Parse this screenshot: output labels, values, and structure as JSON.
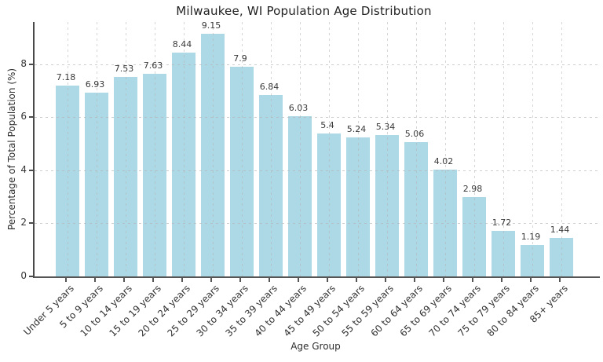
{
  "chart_data": {
    "type": "bar",
    "title": "Milwaukee, WI Population Age Distribution",
    "xlabel": "Age Group",
    "ylabel": "Percentage of Total Population (%)",
    "categories": [
      "Under 5 years",
      "5 to 9 years",
      "10 to 14 years",
      "15 to 19 years",
      "20 to 24 years",
      "25 to 29 years",
      "30 to 34 years",
      "35 to 39 years",
      "40 to 44 years",
      "45 to 49 years",
      "50 to 54 years",
      "55 to 59 years",
      "60 to 64 years",
      "65 to 69 years",
      "70 to 74 years",
      "75 to 79 years",
      "80 to 84 years",
      "85+ years"
    ],
    "values": [
      7.18,
      6.93,
      7.53,
      7.63,
      8.44,
      9.15,
      7.9,
      6.84,
      6.03,
      5.4,
      5.24,
      5.34,
      5.06,
      4.02,
      2.98,
      1.72,
      1.19,
      1.44
    ],
    "value_labels": [
      "7.18",
      "6.93",
      "7.53",
      "7.63",
      "8.44",
      "9.15",
      "7.9",
      "6.84",
      "6.03",
      "5.4",
      "5.24",
      "5.34",
      "5.06",
      "4.02",
      "2.98",
      "1.72",
      "1.19",
      "1.44"
    ],
    "yticks": [
      0,
      2,
      4,
      6,
      8
    ],
    "ylim": [
      0,
      9.59
    ],
    "grid": true,
    "legend": null,
    "bar_color": "#ADD8E6",
    "text_color": "#333333",
    "grid_color": "#c8c8c8",
    "spine_color": "#4a4a4a",
    "background_color": "#ffffff"
  }
}
